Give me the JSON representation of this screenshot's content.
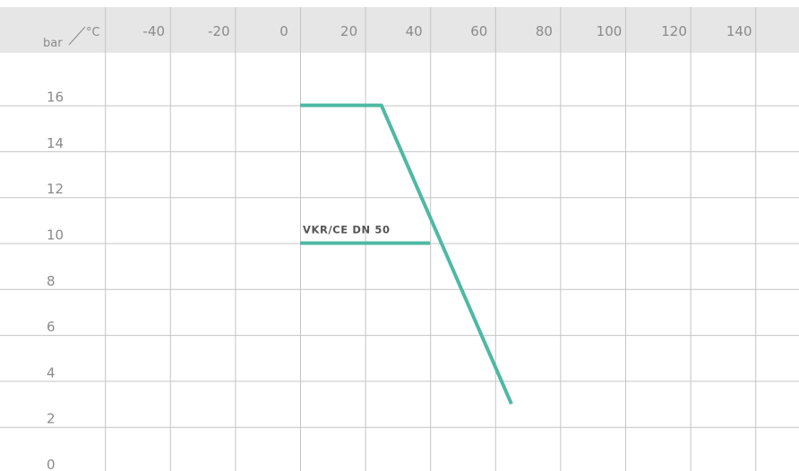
{
  "chart_data": {
    "type": "line",
    "corner_label_left": "bar",
    "corner_label_right": "°C",
    "x_ticks": [
      "-40",
      "-20",
      "0",
      "20",
      "40",
      "60",
      "80",
      "100",
      "120",
      "140"
    ],
    "y_ticks": [
      "16",
      "14",
      "12",
      "10",
      "8",
      "6",
      "4",
      "2",
      "0"
    ],
    "xlim": [
      -60,
      160
    ],
    "ylim": [
      0,
      16
    ],
    "grid": true,
    "series": [
      {
        "name": "VKR/CE DN 50",
        "color": "#4fb9a3",
        "x": [
          0,
          25,
          65
        ],
        "y": [
          16,
          16,
          3
        ]
      },
      {
        "name": "",
        "color": "#4fb9a3",
        "x": [
          0,
          40
        ],
        "y": [
          10,
          10
        ]
      }
    ],
    "annotations": [
      {
        "text": "VKR/CE DN 50",
        "x": 0,
        "y": 10
      }
    ]
  }
}
